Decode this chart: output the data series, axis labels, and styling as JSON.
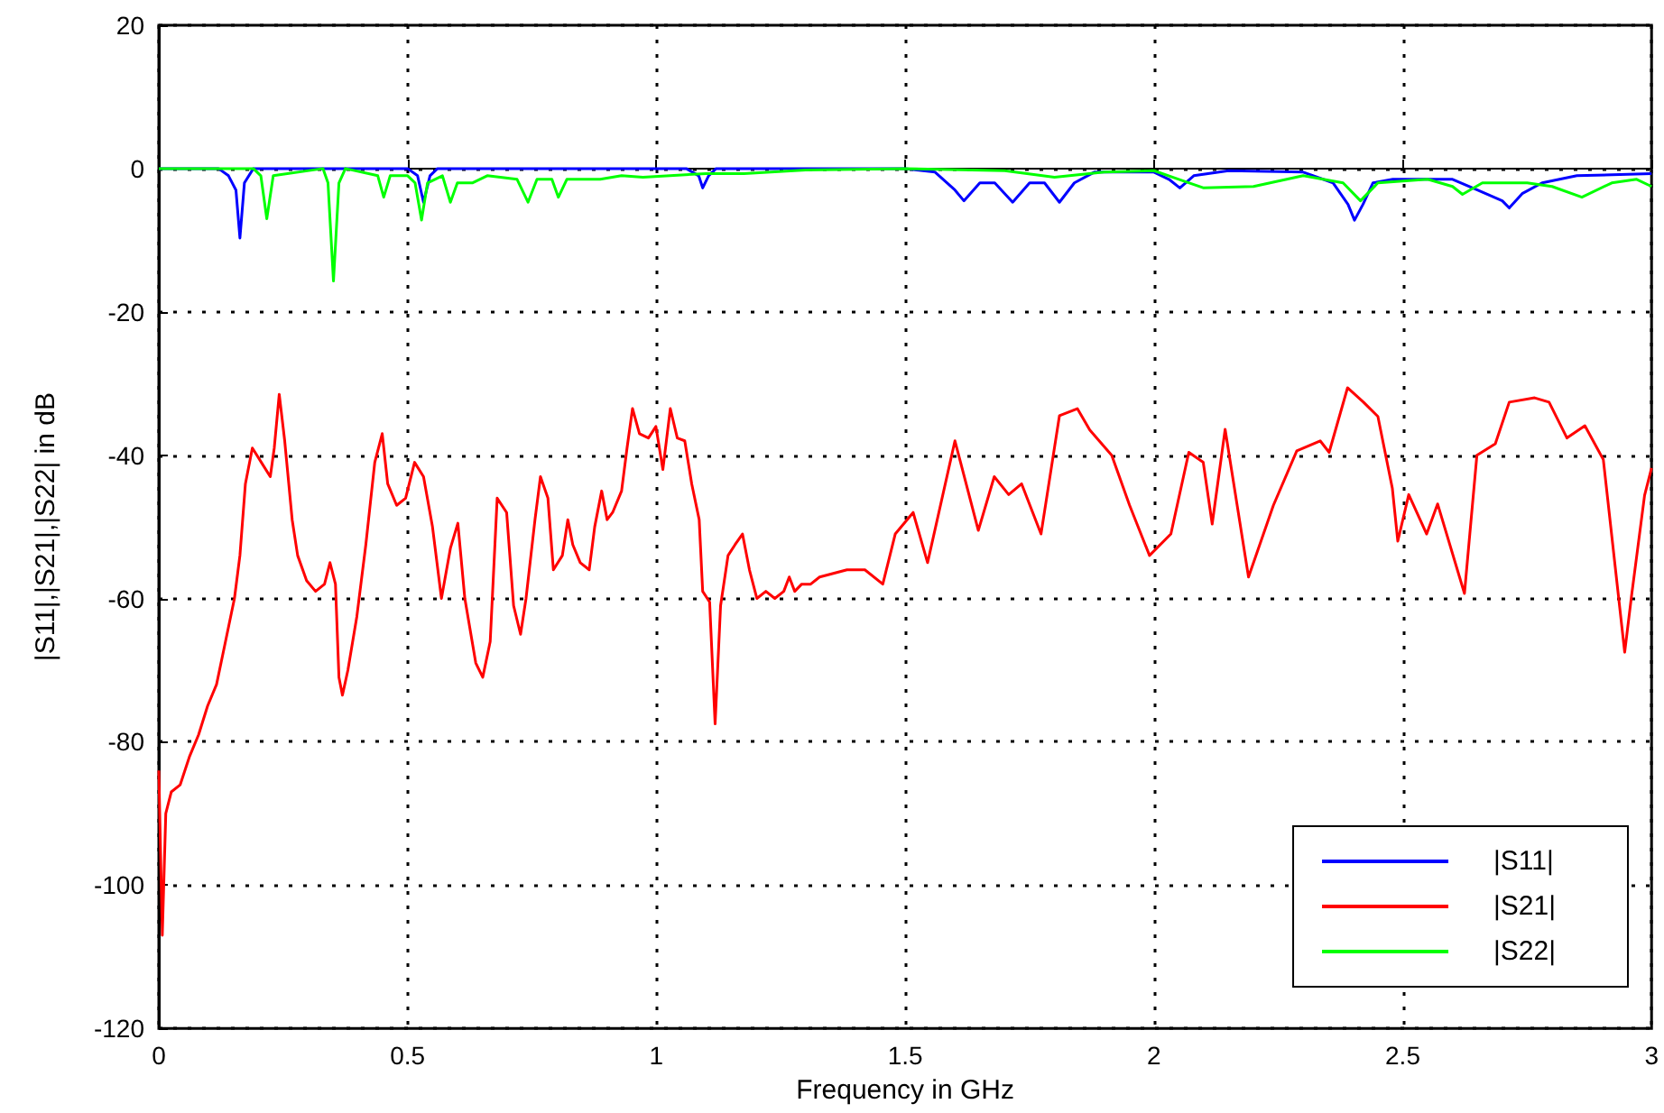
{
  "chart_data": {
    "type": "line",
    "xlabel": "Frequency in GHz",
    "ylabel": "|S11|,|S21|,|S22| in dB",
    "xlim": [
      0,
      3
    ],
    "xticks": [
      0,
      0.5,
      1,
      1.5,
      2,
      2.5,
      3
    ],
    "ylim": [
      -120,
      20
    ],
    "yticks": [
      -120,
      -100,
      -80,
      -60,
      -40,
      -20,
      0,
      20
    ],
    "grid": true,
    "legend": "bottom right",
    "line_style": "solid",
    "marker": "none",
    "series": [
      {
        "name": "|S11|",
        "color": "#0000ff",
        "x": [
          0,
          0.12,
          0.14,
          0.155,
          0.163,
          0.172,
          0.19,
          0.5,
          0.52,
          0.532,
          0.545,
          0.56,
          1.06,
          1.085,
          1.093,
          1.105,
          1.12,
          1.5,
          1.56,
          1.6,
          1.618,
          1.65,
          1.68,
          1.716,
          1.75,
          1.78,
          1.81,
          1.84,
          1.88,
          2.0,
          2.03,
          2.052,
          2.08,
          2.15,
          2.3,
          2.36,
          2.39,
          2.403,
          2.42,
          2.44,
          2.48,
          2.6,
          2.65,
          2.7,
          2.714,
          2.74,
          2.78,
          2.85,
          3.0
        ],
        "values": [
          0,
          0,
          -1,
          -3,
          -9.7,
          -2,
          0,
          0,
          -1,
          -4.7,
          -1,
          0,
          0,
          -1,
          -2.7,
          -1,
          0,
          0,
          -0.5,
          -3,
          -4.5,
          -2,
          -2,
          -4.7,
          -2,
          -2,
          -4.7,
          -2,
          -0.5,
          -0.5,
          -1.5,
          -2.7,
          -1,
          -0.3,
          -0.5,
          -2,
          -5,
          -7.2,
          -5,
          -2,
          -1.5,
          -1.5,
          -3,
          -4.5,
          -5.5,
          -3.5,
          -2,
          -1,
          -0.7
        ]
      },
      {
        "name": "|S21|",
        "color": "#ff0000",
        "x": [
          0,
          0.007,
          0.014,
          0.025,
          0.043,
          0.062,
          0.08,
          0.098,
          0.116,
          0.134,
          0.152,
          0.163,
          0.174,
          0.188,
          0.206,
          0.224,
          0.232,
          0.242,
          0.253,
          0.268,
          0.279,
          0.297,
          0.315,
          0.333,
          0.344,
          0.355,
          0.362,
          0.369,
          0.38,
          0.398,
          0.416,
          0.434,
          0.449,
          0.46,
          0.478,
          0.496,
          0.514,
          0.532,
          0.55,
          0.568,
          0.586,
          0.601,
          0.615,
          0.637,
          0.651,
          0.666,
          0.68,
          0.699,
          0.713,
          0.727,
          0.738,
          0.756,
          0.767,
          0.782,
          0.793,
          0.811,
          0.822,
          0.832,
          0.847,
          0.865,
          0.876,
          0.89,
          0.901,
          0.912,
          0.93,
          0.941,
          0.952,
          0.966,
          0.984,
          0.999,
          1.013,
          1.028,
          1.042,
          1.057,
          1.071,
          1.086,
          1.093,
          1.107,
          1.118,
          1.129,
          1.144,
          1.158,
          1.173,
          1.187,
          1.202,
          1.22,
          1.238,
          1.256,
          1.267,
          1.278,
          1.292,
          1.31,
          1.328,
          1.383,
          1.419,
          1.455,
          1.48,
          1.516,
          1.545,
          1.6,
          1.647,
          1.679,
          1.708,
          1.734,
          1.773,
          1.81,
          1.846,
          1.871,
          1.915,
          1.951,
          1.991,
          2.034,
          2.07,
          2.099,
          2.117,
          2.143,
          2.19,
          2.24,
          2.287,
          2.334,
          2.352,
          2.389,
          2.421,
          2.45,
          2.479,
          2.49,
          2.512,
          2.548,
          2.57,
          2.624,
          2.649,
          2.686,
          2.714,
          2.765,
          2.794,
          2.83,
          2.866,
          2.903,
          2.946,
          2.96,
          2.986,
          3.0
        ],
        "values": [
          -84,
          -107,
          -90,
          -87,
          -86,
          -82,
          -79,
          -75,
          -72,
          -66,
          -60,
          -54,
          -44,
          -39,
          -41,
          -43,
          -39,
          -31.5,
          -38,
          -49,
          -54,
          -57.5,
          -59,
          -58,
          -55,
          -58,
          -71,
          -73.5,
          -70,
          -62.5,
          -52.5,
          -41,
          -37,
          -44,
          -47,
          -46,
          -41,
          -43,
          -50,
          -60,
          -53,
          -49.5,
          -60,
          -69,
          -71,
          -66,
          -46,
          -48,
          -61,
          -65,
          -60,
          -49,
          -43,
          -46,
          -56,
          -54,
          -49,
          -52.5,
          -55,
          -56,
          -50,
          -45,
          -49,
          -48,
          -45,
          -39,
          -33.5,
          -37,
          -37.6,
          -36,
          -42,
          -33.5,
          -37.6,
          -38,
          -44,
          -49,
          -59,
          -60.5,
          -77.5,
          -61,
          -54,
          -52.5,
          -51,
          -56,
          -60,
          -59,
          -60,
          -59,
          -57,
          -59,
          -58,
          -58,
          -57,
          -56,
          -56,
          -58,
          -51,
          -48,
          -55,
          -38,
          -50.5,
          -43,
          -45.5,
          -44,
          -51,
          -34.5,
          -33.5,
          -36.5,
          -40,
          -47,
          -54,
          -51,
          -39.6,
          -41,
          -49.6,
          -36.4,
          -57,
          -47,
          -39.4,
          -38,
          -39.6,
          -30.6,
          -32.6,
          -34.6,
          -44.6,
          -52,
          -45.5,
          -51,
          -46.8,
          -59.3,
          -40,
          -38.4,
          -32.6,
          -32,
          -32.6,
          -37.6,
          -35.9,
          -40.6,
          -67.5,
          -59.5,
          -45.6,
          -41.8
        ]
      },
      {
        "name": "|S22|",
        "color": "#00ff00",
        "x": [
          0,
          0.19,
          0.205,
          0.217,
          0.23,
          0.33,
          0.34,
          0.351,
          0.362,
          0.375,
          0.44,
          0.452,
          0.465,
          0.5,
          0.515,
          0.528,
          0.54,
          0.57,
          0.586,
          0.6,
          0.63,
          0.66,
          0.72,
          0.742,
          0.76,
          0.79,
          0.803,
          0.82,
          0.887,
          0.93,
          0.973,
          1.1,
          1.176,
          1.3,
          1.5,
          1.7,
          1.8,
          1.9,
          2.0,
          2.05,
          2.1,
          2.2,
          2.3,
          2.38,
          2.415,
          2.45,
          2.55,
          2.6,
          2.62,
          2.66,
          2.75,
          2.8,
          2.86,
          2.92,
          2.97,
          3.0
        ],
        "values": [
          0,
          0,
          -1,
          -7,
          -1,
          0,
          -2,
          -15.7,
          -2,
          0,
          -1,
          -4,
          -1,
          -1,
          -2,
          -7.2,
          -2,
          -1,
          -4.7,
          -2,
          -2,
          -1,
          -1.5,
          -4.7,
          -1.5,
          -1.5,
          -4,
          -1.5,
          -1.5,
          -1,
          -1.2,
          -0.7,
          -0.7,
          -0.2,
          0,
          -0.3,
          -1.2,
          -0.5,
          -0.3,
          -1.5,
          -2.7,
          -2.5,
          -1,
          -2,
          -4.5,
          -2,
          -1.5,
          -2.5,
          -3.6,
          -2,
          -2,
          -2.5,
          -4,
          -2,
          -1.5,
          -2.5
        ]
      }
    ]
  }
}
